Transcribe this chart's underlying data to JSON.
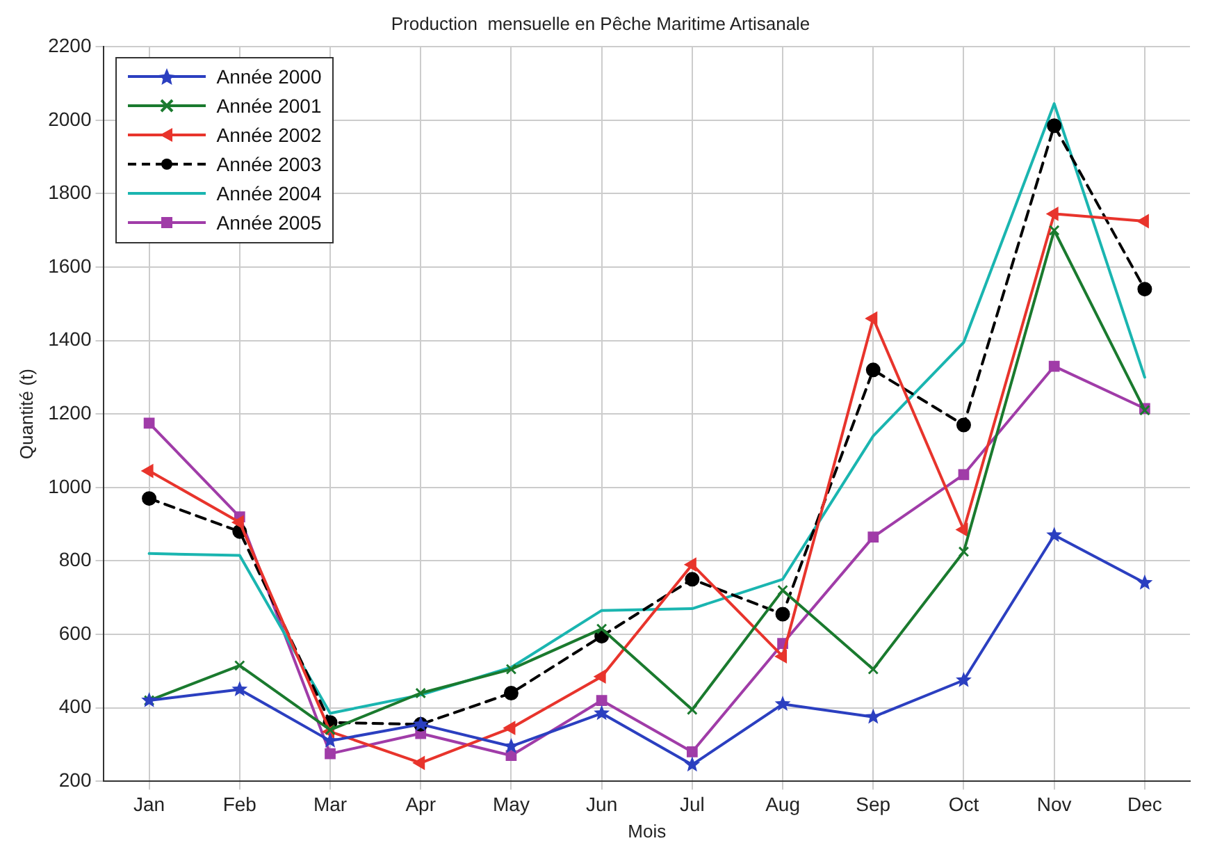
{
  "chart_data": {
    "type": "line",
    "title": "Production  mensuelle en Pêche Maritime Artisanale",
    "xlabel": "Mois",
    "ylabel": "Quantité (t)",
    "categories": [
      "Jan",
      "Feb",
      "Mar",
      "Apr",
      "May",
      "Jun",
      "Jul",
      "Aug",
      "Sep",
      "Oct",
      "Nov",
      "Dec"
    ],
    "ylim": [
      200,
      2200
    ],
    "yticks": [
      200,
      400,
      600,
      800,
      1000,
      1200,
      1400,
      1600,
      1800,
      2000,
      2200
    ],
    "grid": true,
    "legend": "top left",
    "series": [
      {
        "name": "Année 2000",
        "color": "#2b3fc0",
        "marker": "star",
        "line_style": "solid",
        "values": [
          420,
          450,
          310,
          355,
          295,
          385,
          245,
          410,
          375,
          475,
          870,
          740
        ]
      },
      {
        "name": "Année 2001",
        "color": "#1a7a2e",
        "marker": "cross",
        "line_style": "solid",
        "values": [
          420,
          515,
          340,
          440,
          505,
          615,
          395,
          720,
          505,
          825,
          1700,
          1210
        ]
      },
      {
        "name": "Année 2002",
        "color": "#e8342c",
        "marker": "triangle",
        "line_style": "solid",
        "values": [
          1045,
          905,
          335,
          250,
          345,
          485,
          790,
          540,
          1460,
          885,
          1745,
          1725
        ]
      },
      {
        "name": "Année 2003",
        "color": "#000000",
        "marker": "circle",
        "line_style": "dashed",
        "values": [
          970,
          880,
          360,
          355,
          440,
          595,
          750,
          655,
          1320,
          1170,
          1985,
          1540
        ]
      },
      {
        "name": "Année 2004",
        "color": "#1ab5b0",
        "marker": "none",
        "line_style": "solid",
        "values": [
          820,
          815,
          385,
          435,
          510,
          665,
          670,
          750,
          1140,
          1395,
          2045,
          1300
        ]
      },
      {
        "name": "Année 2005",
        "color": "#a03ca8",
        "marker": "square",
        "line_style": "solid",
        "values": [
          1175,
          920,
          275,
          330,
          270,
          420,
          280,
          575,
          865,
          1035,
          1330,
          1215
        ]
      }
    ]
  }
}
